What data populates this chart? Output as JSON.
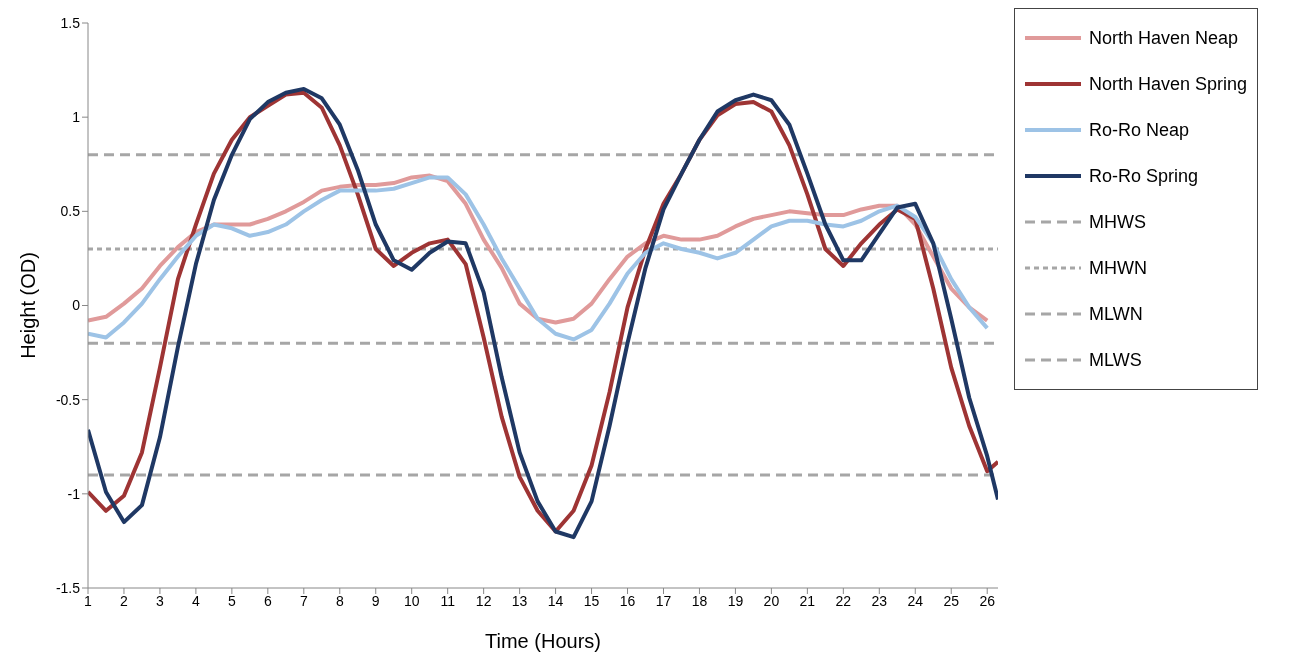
{
  "chart_data": {
    "type": "line",
    "xlabel": "Time (Hours)",
    "ylabel": "Height (OD)",
    "xlim": [
      1,
      26.3
    ],
    "xticks": [
      1,
      2,
      3,
      4,
      5,
      6,
      7,
      8,
      9,
      10,
      11,
      12,
      13,
      14,
      15,
      16,
      17,
      18,
      19,
      20,
      21,
      22,
      23,
      24,
      25,
      26
    ],
    "ylim": [
      -1.5,
      1.5
    ],
    "yticks": [
      -1.5,
      -1,
      -0.5,
      0,
      0.5,
      1,
      1.5
    ],
    "grid": false,
    "legend": "right",
    "marker": "none",
    "line_style": "solid",
    "series": [
      {
        "name": "North Haven Neap",
        "color": "#e09a9a",
        "x": [
          1,
          1.5,
          2,
          2.5,
          3,
          3.5,
          4,
          4.5,
          5,
          5.5,
          6,
          6.5,
          7,
          7.5,
          8,
          8.5,
          9,
          9.5,
          10,
          10.5,
          11,
          11.5,
          12,
          12.5,
          13,
          13.5,
          14,
          14.5,
          15,
          15.5,
          16,
          16.5,
          17,
          17.5,
          18,
          18.5,
          19,
          19.5,
          20,
          20.5,
          21,
          21.5,
          22,
          22.5,
          23,
          23.5,
          24,
          24.5,
          25,
          25.5,
          26
        ],
        "values": [
          -0.08,
          -0.06,
          0.01,
          0.09,
          0.21,
          0.31,
          0.39,
          0.43,
          0.43,
          0.43,
          0.46,
          0.5,
          0.55,
          0.61,
          0.63,
          0.64,
          0.64,
          0.65,
          0.68,
          0.69,
          0.66,
          0.54,
          0.35,
          0.2,
          0.01,
          -0.07,
          -0.09,
          -0.07,
          0.01,
          0.14,
          0.26,
          0.33,
          0.37,
          0.35,
          0.35,
          0.37,
          0.42,
          0.46,
          0.48,
          0.5,
          0.49,
          0.48,
          0.48,
          0.51,
          0.53,
          0.53,
          0.43,
          0.26,
          0.09,
          -0.01,
          -0.08
        ]
      },
      {
        "name": "North Haven Spring",
        "color": "#9e3434",
        "x": [
          1,
          1.5,
          2,
          2.5,
          3,
          3.5,
          4,
          4.5,
          5,
          5.5,
          6,
          6.5,
          7,
          7.5,
          8,
          8.5,
          9,
          9.5,
          10,
          10.5,
          11,
          11.5,
          12,
          12.5,
          13,
          13.5,
          14,
          14.5,
          15,
          15.5,
          16,
          16.5,
          17,
          17.5,
          18,
          18.5,
          19,
          19.5,
          20,
          20.5,
          21,
          21.5,
          22,
          22.5,
          23,
          23.5,
          24,
          24.5,
          25,
          25.5,
          26,
          26.3
        ],
        "values": [
          -0.99,
          -1.09,
          -1.01,
          -0.78,
          -0.33,
          0.14,
          0.43,
          0.7,
          0.88,
          1,
          1.06,
          1.12,
          1.13,
          1.05,
          0.85,
          0.59,
          0.3,
          0.21,
          0.28,
          0.33,
          0.35,
          0.22,
          -0.17,
          -0.59,
          -0.91,
          -1.09,
          -1.2,
          -1.09,
          -0.85,
          -0.46,
          -0.01,
          0.3,
          0.54,
          0.7,
          0.88,
          1.01,
          1.07,
          1.08,
          1.03,
          0.85,
          0.59,
          0.3,
          0.21,
          0.33,
          0.43,
          0.51,
          0.46,
          0.09,
          -0.33,
          -0.64,
          -0.88,
          -0.83
        ]
      },
      {
        "name": "Ro-Ro Neap",
        "color": "#9dc3e6",
        "x": [
          1,
          1.5,
          2,
          2.5,
          3,
          3.5,
          4,
          4.5,
          5,
          5.5,
          6,
          6.5,
          7,
          7.5,
          8,
          8.5,
          9,
          9.5,
          10,
          10.5,
          11,
          11.5,
          12,
          12.5,
          13,
          13.5,
          14,
          14.5,
          15,
          15.5,
          16,
          16.5,
          17,
          17.5,
          18,
          18.5,
          19,
          19.5,
          20,
          20.5,
          21,
          21.5,
          22,
          22.5,
          23,
          23.5,
          24,
          24.5,
          25,
          25.5,
          26
        ],
        "values": [
          -0.15,
          -0.17,
          -0.09,
          0.01,
          0.14,
          0.26,
          0.37,
          0.43,
          0.41,
          0.37,
          0.39,
          0.43,
          0.5,
          0.56,
          0.61,
          0.61,
          0.61,
          0.62,
          0.65,
          0.68,
          0.68,
          0.59,
          0.43,
          0.25,
          0.09,
          -0.07,
          -0.15,
          -0.18,
          -0.13,
          0.01,
          0.17,
          0.28,
          0.33,
          0.3,
          0.28,
          0.25,
          0.28,
          0.35,
          0.42,
          0.45,
          0.45,
          0.43,
          0.42,
          0.45,
          0.5,
          0.53,
          0.47,
          0.33,
          0.14,
          -0.01,
          -0.12
        ]
      },
      {
        "name": "Ro-Ro Spring",
        "color": "#1f3864",
        "x": [
          1,
          1.5,
          2,
          2.5,
          3,
          3.5,
          4,
          4.5,
          5,
          5.5,
          6,
          6.5,
          7,
          7.5,
          8,
          8.5,
          9,
          9.5,
          10,
          10.5,
          11,
          11.5,
          12,
          12.5,
          13,
          13.5,
          14,
          14.5,
          15,
          15.5,
          16,
          16.5,
          17,
          17.5,
          18,
          18.5,
          19,
          19.5,
          20,
          20.5,
          21,
          21.5,
          22,
          22.5,
          23,
          23.5,
          24,
          24.5,
          25,
          25.5,
          26,
          26.3
        ],
        "values": [
          -0.66,
          -0.99,
          -1.15,
          -1.06,
          -0.7,
          -0.22,
          0.22,
          0.56,
          0.8,
          0.99,
          1.08,
          1.13,
          1.15,
          1.1,
          0.96,
          0.72,
          0.43,
          0.24,
          0.19,
          0.28,
          0.34,
          0.33,
          0.07,
          -0.38,
          -0.78,
          -1.04,
          -1.2,
          -1.23,
          -1.04,
          -0.64,
          -0.2,
          0.2,
          0.51,
          0.7,
          0.88,
          1.03,
          1.09,
          1.12,
          1.09,
          0.96,
          0.7,
          0.43,
          0.24,
          0.24,
          0.38,
          0.52,
          0.54,
          0.33,
          -0.07,
          -0.49,
          -0.8,
          -1.03
        ]
      }
    ],
    "ref_lines": [
      {
        "axis": "y",
        "value": 0.8,
        "label": "MHWS",
        "color": "#a6a6a6",
        "line_style": "dashed"
      },
      {
        "axis": "y",
        "value": 0.3,
        "label": "MHWN",
        "color": "#a6a6a6",
        "line_style": "dotted"
      },
      {
        "axis": "y",
        "value": -0.2,
        "label": "MLWN",
        "color": "#a6a6a6",
        "line_style": "dashed"
      },
      {
        "axis": "y",
        "value": -0.9,
        "label": "MLWS",
        "color": "#a6a6a6",
        "line_style": "dashed"
      }
    ]
  }
}
